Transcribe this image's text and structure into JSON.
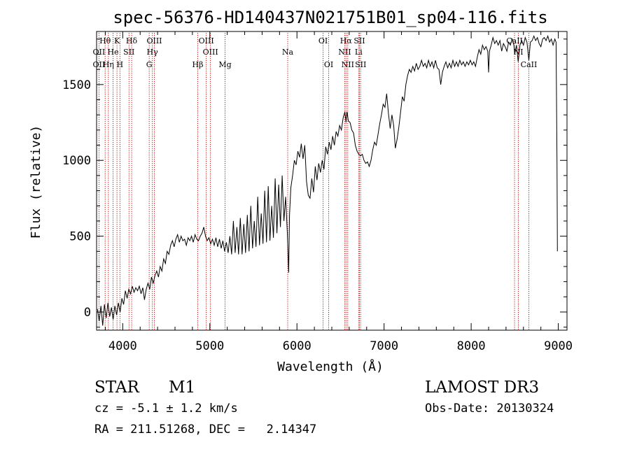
{
  "chart_data": {
    "type": "line",
    "title": "spec-56376-HD140437N021751B01_sp04-116.fits",
    "xlabel": "Wavelength (Å)",
    "ylabel": "Flux (relative)",
    "xlim": [
      3700,
      9100
    ],
    "ylim": [
      -120,
      1850
    ],
    "x_ticks": [
      4000,
      5000,
      6000,
      7000,
      8000,
      9000
    ],
    "y_ticks": [
      0,
      500,
      1000,
      1500
    ],
    "grid": false,
    "series": [
      {
        "points": [
          [
            3710,
            20
          ],
          [
            3730,
            -60
          ],
          [
            3750,
            40
          ],
          [
            3770,
            -90
          ],
          [
            3790,
            50
          ],
          [
            3810,
            -40
          ],
          [
            3830,
            60
          ],
          [
            3850,
            -30
          ],
          [
            3870,
            30
          ],
          [
            3890,
            -50
          ],
          [
            3910,
            40
          ],
          [
            3930,
            -20
          ],
          [
            3950,
            60
          ],
          [
            3970,
            0
          ],
          [
            3990,
            90
          ],
          [
            4010,
            50
          ],
          [
            4030,
            140
          ],
          [
            4050,
            90
          ],
          [
            4070,
            150
          ],
          [
            4090,
            120
          ],
          [
            4110,
            170
          ],
          [
            4130,
            130
          ],
          [
            4150,
            160
          ],
          [
            4170,
            140
          ],
          [
            4190,
            170
          ],
          [
            4210,
            120
          ],
          [
            4230,
            160
          ],
          [
            4250,
            80
          ],
          [
            4270,
            150
          ],
          [
            4290,
            190
          ],
          [
            4310,
            150
          ],
          [
            4330,
            230
          ],
          [
            4350,
            190
          ],
          [
            4370,
            240
          ],
          [
            4390,
            270
          ],
          [
            4410,
            230
          ],
          [
            4430,
            300
          ],
          [
            4450,
            270
          ],
          [
            4470,
            350
          ],
          [
            4490,
            320
          ],
          [
            4510,
            400
          ],
          [
            4530,
            380
          ],
          [
            4550,
            440
          ],
          [
            4570,
            470
          ],
          [
            4590,
            430
          ],
          [
            4610,
            480
          ],
          [
            4630,
            510
          ],
          [
            4650,
            460
          ],
          [
            4670,
            500
          ],
          [
            4690,
            470
          ],
          [
            4710,
            480
          ],
          [
            4730,
            440
          ],
          [
            4750,
            490
          ],
          [
            4770,
            470
          ],
          [
            4790,
            500
          ],
          [
            4810,
            460
          ],
          [
            4830,
            510
          ],
          [
            4850,
            480
          ],
          [
            4870,
            470
          ],
          [
            4890,
            500
          ],
          [
            4910,
            520
          ],
          [
            4930,
            560
          ],
          [
            4950,
            500
          ],
          [
            4970,
            470
          ],
          [
            4990,
            490
          ],
          [
            5010,
            450
          ],
          [
            5030,
            480
          ],
          [
            5050,
            440
          ],
          [
            5070,
            490
          ],
          [
            5090,
            430
          ],
          [
            5110,
            480
          ],
          [
            5130,
            420
          ],
          [
            5150,
            470
          ],
          [
            5170,
            400
          ],
          [
            5190,
            460
          ],
          [
            5210,
            390
          ],
          [
            5230,
            500
          ],
          [
            5250,
            380
          ],
          [
            5270,
            600
          ],
          [
            5290,
            390
          ],
          [
            5310,
            560
          ],
          [
            5330,
            380
          ],
          [
            5350,
            620
          ],
          [
            5370,
            380
          ],
          [
            5390,
            580
          ],
          [
            5410,
            390
          ],
          [
            5430,
            640
          ],
          [
            5450,
            400
          ],
          [
            5470,
            700
          ],
          [
            5490,
            420
          ],
          [
            5510,
            600
          ],
          [
            5530,
            430
          ],
          [
            5550,
            760
          ],
          [
            5570,
            440
          ],
          [
            5590,
            650
          ],
          [
            5610,
            450
          ],
          [
            5630,
            800
          ],
          [
            5650,
            460
          ],
          [
            5670,
            830
          ],
          [
            5690,
            470
          ],
          [
            5710,
            700
          ],
          [
            5730,
            490
          ],
          [
            5750,
            880
          ],
          [
            5770,
            520
          ],
          [
            5790,
            840
          ],
          [
            5810,
            560
          ],
          [
            5830,
            900
          ],
          [
            5850,
            600
          ],
          [
            5870,
            760
          ],
          [
            5890,
            520
          ],
          [
            5905,
            260
          ],
          [
            5915,
            640
          ],
          [
            5930,
            820
          ],
          [
            5950,
            900
          ],
          [
            5970,
            1000
          ],
          [
            5990,
            970
          ],
          [
            6010,
            1060
          ],
          [
            6030,
            1020
          ],
          [
            6050,
            1110
          ],
          [
            6070,
            1010
          ],
          [
            6090,
            1100
          ],
          [
            6110,
            860
          ],
          [
            6130,
            770
          ],
          [
            6150,
            750
          ],
          [
            6170,
            880
          ],
          [
            6190,
            790
          ],
          [
            6210,
            960
          ],
          [
            6230,
            870
          ],
          [
            6250,
            980
          ],
          [
            6270,
            920
          ],
          [
            6290,
            1000
          ],
          [
            6310,
            940
          ],
          [
            6330,
            1090
          ],
          [
            6350,
            1040
          ],
          [
            6370,
            1120
          ],
          [
            6390,
            1070
          ],
          [
            6410,
            1160
          ],
          [
            6430,
            1100
          ],
          [
            6450,
            1190
          ],
          [
            6470,
            1160
          ],
          [
            6490,
            1230
          ],
          [
            6510,
            1200
          ],
          [
            6530,
            1280
          ],
          [
            6550,
            1320
          ],
          [
            6563,
            1250
          ],
          [
            6575,
            1320
          ],
          [
            6590,
            1260
          ],
          [
            6610,
            1250
          ],
          [
            6630,
            1200
          ],
          [
            6650,
            1180
          ],
          [
            6670,
            1100
          ],
          [
            6690,
            1060
          ],
          [
            6710,
            1040
          ],
          [
            6730,
            1030
          ],
          [
            6750,
            1040
          ],
          [
            6770,
            1000
          ],
          [
            6790,
            980
          ],
          [
            6810,
            990
          ],
          [
            6830,
            960
          ],
          [
            6850,
            1000
          ],
          [
            6870,
            1070
          ],
          [
            6890,
            1120
          ],
          [
            6910,
            1100
          ],
          [
            6930,
            1170
          ],
          [
            6950,
            1240
          ],
          [
            6970,
            1300
          ],
          [
            6990,
            1370
          ],
          [
            7010,
            1350
          ],
          [
            7030,
            1440
          ],
          [
            7050,
            1310
          ],
          [
            7070,
            1210
          ],
          [
            7090,
            1300
          ],
          [
            7110,
            1230
          ],
          [
            7130,
            1080
          ],
          [
            7150,
            1140
          ],
          [
            7170,
            1220
          ],
          [
            7190,
            1320
          ],
          [
            7210,
            1420
          ],
          [
            7230,
            1390
          ],
          [
            7250,
            1500
          ],
          [
            7270,
            1560
          ],
          [
            7290,
            1600
          ],
          [
            7310,
            1580
          ],
          [
            7330,
            1620
          ],
          [
            7350,
            1590
          ],
          [
            7370,
            1640
          ],
          [
            7390,
            1600
          ],
          [
            7410,
            1620
          ],
          [
            7430,
            1660
          ],
          [
            7450,
            1620
          ],
          [
            7470,
            1640
          ],
          [
            7490,
            1610
          ],
          [
            7510,
            1660
          ],
          [
            7530,
            1620
          ],
          [
            7550,
            1650
          ],
          [
            7570,
            1610
          ],
          [
            7590,
            1660
          ],
          [
            7610,
            1610
          ],
          [
            7630,
            1600
          ],
          [
            7650,
            1500
          ],
          [
            7670,
            1580
          ],
          [
            7690,
            1620
          ],
          [
            7710,
            1650
          ],
          [
            7730,
            1610
          ],
          [
            7750,
            1640
          ],
          [
            7770,
            1610
          ],
          [
            7790,
            1660
          ],
          [
            7810,
            1620
          ],
          [
            7830,
            1650
          ],
          [
            7850,
            1620
          ],
          [
            7870,
            1660
          ],
          [
            7890,
            1630
          ],
          [
            7910,
            1650
          ],
          [
            7930,
            1620
          ],
          [
            7950,
            1650
          ],
          [
            7970,
            1630
          ],
          [
            7990,
            1660
          ],
          [
            8010,
            1630
          ],
          [
            8030,
            1650
          ],
          [
            8050,
            1620
          ],
          [
            8070,
            1680
          ],
          [
            8090,
            1730
          ],
          [
            8110,
            1700
          ],
          [
            8130,
            1760
          ],
          [
            8150,
            1730
          ],
          [
            8170,
            1750
          ],
          [
            8190,
            1720
          ],
          [
            8200,
            1580
          ],
          [
            8210,
            1720
          ],
          [
            8230,
            1760
          ],
          [
            8250,
            1810
          ],
          [
            8270,
            1770
          ],
          [
            8290,
            1790
          ],
          [
            8310,
            1760
          ],
          [
            8330,
            1790
          ],
          [
            8350,
            1720
          ],
          [
            8370,
            1770
          ],
          [
            8390,
            1750
          ],
          [
            8410,
            1720
          ],
          [
            8430,
            1780
          ],
          [
            8450,
            1760
          ],
          [
            8470,
            1800
          ],
          [
            8490,
            1760
          ],
          [
            8500,
            1700
          ],
          [
            8520,
            1760
          ],
          [
            8540,
            1650
          ],
          [
            8560,
            1760
          ],
          [
            8580,
            1790
          ],
          [
            8600,
            1760
          ],
          [
            8620,
            1810
          ],
          [
            8640,
            1780
          ],
          [
            8662,
            1660
          ],
          [
            8680,
            1780
          ],
          [
            8700,
            1790
          ],
          [
            8720,
            1820
          ],
          [
            8740,
            1790
          ],
          [
            8760,
            1810
          ],
          [
            8780,
            1770
          ],
          [
            8800,
            1750
          ],
          [
            8820,
            1800
          ],
          [
            8840,
            1810
          ],
          [
            8860,
            1790
          ],
          [
            8880,
            1820
          ],
          [
            8900,
            1780
          ],
          [
            8920,
            1800
          ],
          [
            8940,
            1760
          ],
          [
            8960,
            1800
          ],
          [
            8975,
            1780
          ],
          [
            8985,
            1000
          ],
          [
            8990,
            400
          ]
        ]
      }
    ],
    "annotations": [
      {
        "label": "Hθ",
        "x": 3798,
        "row": 1
      },
      {
        "label": "OII",
        "x": 3727,
        "row": 2
      },
      {
        "label": "OII",
        "x": 3727,
        "row": 3
      },
      {
        "label": "He",
        "x": 3889,
        "row": 2
      },
      {
        "label": "Hη",
        "x": 3835,
        "row": 3
      },
      {
        "label": "K",
        "x": 3934,
        "row": 1
      },
      {
        "label": "H",
        "x": 3968,
        "row": 3
      },
      {
        "label": "Hδ",
        "x": 4102,
        "row": 1
      },
      {
        "label": "SII",
        "x": 4072,
        "row": 2
      },
      {
        "label": "OIII",
        "x": 4363,
        "row": 1
      },
      {
        "label": "Hγ",
        "x": 4340,
        "row": 2
      },
      {
        "label": "G",
        "x": 4304,
        "row": 3
      },
      {
        "label": "Hβ",
        "x": 4861,
        "row": 3
      },
      {
        "label": "OIII",
        "x": 4959,
        "row": 1
      },
      {
        "label": "OIII",
        "x": 5007,
        "row": 2
      },
      {
        "label": "Mg",
        "x": 5175,
        "row": 3
      },
      {
        "label": "Na",
        "x": 5894,
        "row": 2
      },
      {
        "label": "OI",
        "x": 6300,
        "row": 1
      },
      {
        "label": "OI",
        "x": 6364,
        "row": 3
      },
      {
        "label": "Hα",
        "x": 6563,
        "row": 1
      },
      {
        "label": "SII",
        "x": 6717,
        "row": 1
      },
      {
        "label": "NII",
        "x": 6548,
        "row": 2
      },
      {
        "label": "Li",
        "x": 6708,
        "row": 2
      },
      {
        "label": "NII",
        "x": 6583,
        "row": 3
      },
      {
        "label": "SII",
        "x": 6731,
        "row": 3
      },
      {
        "label": "CaII",
        "x": 8498,
        "row": 1
      },
      {
        "label": "NI",
        "x": 8542,
        "row": 2
      },
      {
        "label": "CaII",
        "x": 8662,
        "row": 3
      }
    ],
    "line_positions": [
      3727,
      3798,
      3835,
      3889,
      3934,
      3968,
      4072,
      4102,
      4304,
      4340,
      4363,
      4861,
      4959,
      5007,
      5175,
      5894,
      6300,
      6364,
      6548,
      6563,
      6583,
      6708,
      6717,
      6731,
      8498,
      8542,
      8662
    ],
    "line_color": "#c00000",
    "spectrum_color": "#000000"
  },
  "info": {
    "object_class": "STAR",
    "subclass": "M1",
    "survey": "LAMOST DR3",
    "cz": "cz = -5.1 ± 1.2 km/s",
    "obs_date": "Obs-Date: 20130324",
    "coords": "RA = 211.51268, DEC =   2.14347"
  }
}
